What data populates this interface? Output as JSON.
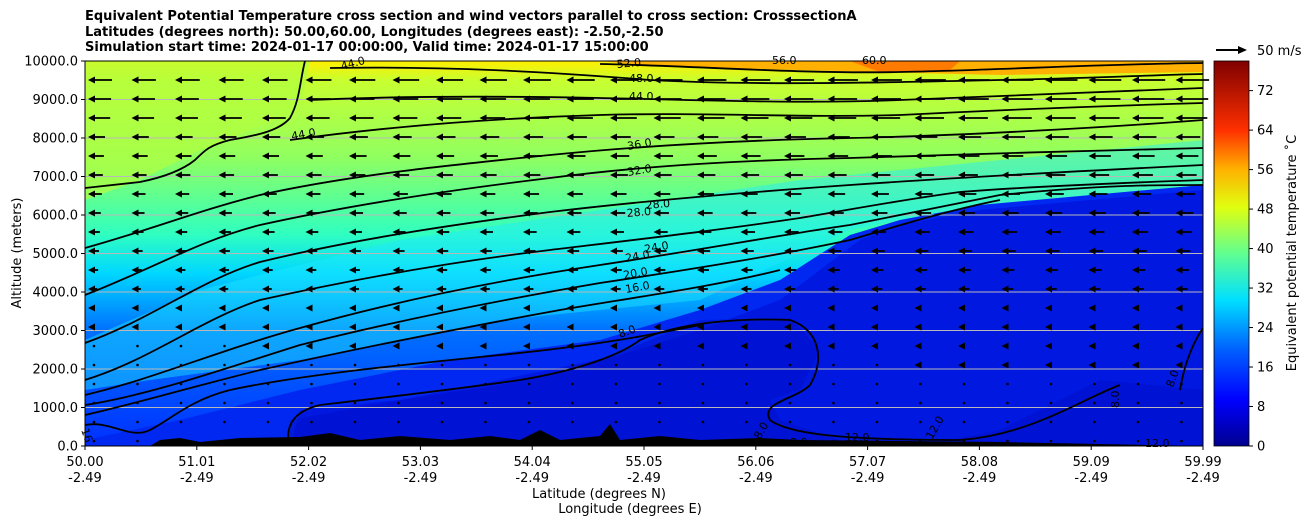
{
  "chart_data": {
    "type": "heatmap",
    "title_lines": [
      "Equivalent Potential Temperature cross section and wind vectors parallel to cross section: CrosssectionA",
      "Latitudes (degrees north): 50.00,60.00, Longitudes (degrees east): -2.50,-2.50",
      "Simulation start time: 2024-01-17 00:00:00, Valid time: 2024-01-17 15:00:00"
    ],
    "ylabel": "Altitude (meters)",
    "xlabel_lines": [
      "Latitude (degrees N)",
      "Longitude (degrees E)"
    ],
    "ylim": [
      0,
      10000
    ],
    "y_ticks": [
      "0.0",
      "1000.0",
      "2000.0",
      "3000.0",
      "4000.0",
      "5000.0",
      "6000.0",
      "7000.0",
      "8000.0",
      "9000.0",
      "10000.0"
    ],
    "x_ticks_lat": [
      "50.00",
      "51.01",
      "52.02",
      "53.03",
      "54.04",
      "55.05",
      "56.06",
      "57.07",
      "58.08",
      "59.09",
      "59.99"
    ],
    "x_ticks_lon": [
      "-2.49",
      "-2.49",
      "-2.49",
      "-2.49",
      "-2.49",
      "-2.49",
      "-2.49",
      "-2.49",
      "-2.49",
      "-2.49",
      "-2.49"
    ],
    "grid": "horizontal",
    "colorbar": {
      "label": "Equivalent potential temperature ˚C",
      "range": [
        0,
        78
      ],
      "ticks": [
        "0",
        "8",
        "16",
        "24",
        "32",
        "40",
        "48",
        "56",
        "64",
        "72"
      ]
    },
    "wind_key_label": "50 m/s",
    "contour_labels": [
      {
        "text": "52.0"
      },
      {
        "text": "48.0"
      },
      {
        "text": "44.0"
      },
      {
        "text": "44.0"
      },
      {
        "text": "44.0"
      },
      {
        "text": "36.0"
      },
      {
        "text": "32.0"
      },
      {
        "text": "28.0"
      },
      {
        "text": "28.0"
      },
      {
        "text": "24.0"
      },
      {
        "text": "24.0"
      },
      {
        "text": "20.0"
      },
      {
        "text": "16.0"
      },
      {
        "text": "8.0"
      },
      {
        "text": "56.0"
      },
      {
        "text": "60.0"
      },
      {
        "text": "12.0"
      },
      {
        "text": "8.0"
      },
      {
        "text": "8.0"
      },
      {
        "text": "12.0"
      },
      {
        "text": "16"
      },
      {
        "text": "8.0"
      },
      {
        "text": "8.0"
      },
      {
        "text": "12.0"
      }
    ]
  },
  "colors": {
    "colormap": [
      "#00008f",
      "#0000ff",
      "#0080ff",
      "#00ffff",
      "#80ff80",
      "#ffff00",
      "#ff8000",
      "#ff0000",
      "#800000"
    ]
  }
}
